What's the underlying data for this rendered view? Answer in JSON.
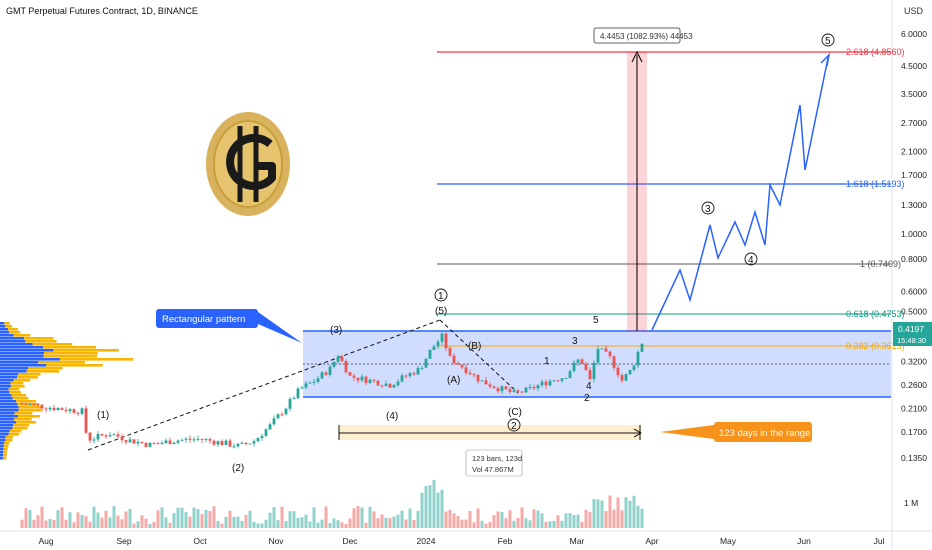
{
  "chart_data": {
    "type": "candlestick",
    "title": "GMT Perpetual Futures Contract, 1D, BINANCE",
    "currency": "USD",
    "y_scale": "log",
    "y_ticks": [
      "6.0000",
      "4.5000",
      "3.5000",
      "2.7000",
      "2.1000",
      "1.7000",
      "1.3000",
      "1.0000",
      "0.8000",
      "0.6000",
      "0.5000",
      "0.4197",
      "0.3200",
      "0.2600",
      "0.2100",
      "0.1700",
      "0.1350"
    ],
    "x_ticks": [
      "Aug",
      "Sep",
      "Oct",
      "Nov",
      "Dec",
      "2024",
      "Feb",
      "Mar",
      "Apr",
      "May",
      "Jun",
      "Jul"
    ],
    "current_price": {
      "value": "0.4197",
      "countdown": "15:48:30",
      "color": "#26a69a"
    },
    "fib_levels": [
      {
        "label": "2.618 (4.8560)",
        "color": "#f23645"
      },
      {
        "label": "1.618 (1.5193)",
        "color": "#2962ff"
      },
      {
        "label": "1 (0.7409)",
        "color": "#555555"
      },
      {
        "label": "0.618 (0.4753)",
        "color": "#089981"
      },
      {
        "label": "0.382 (0.3613)",
        "color": "#f7a600"
      }
    ],
    "measure_label": "4.4453 (1082.93%) 44453",
    "range_info": {
      "bars": "123 bars, 123d",
      "volume": "Vol 47.867M"
    },
    "callouts": {
      "pattern": "Rectangular pattern",
      "range": "123 days in the range"
    },
    "wave_labels": {
      "w1": "(1)",
      "w2": "(2)",
      "w3": "(3)",
      "w4": "(4)",
      "w5": "(5)",
      "circ1": "1",
      "circ2": "2",
      "circ3": "3",
      "circ4": "4",
      "circ5": "5",
      "A": "(A)",
      "B": "(B)",
      "C": "(C)",
      "s1": "1",
      "s2": "2",
      "s3": "3",
      "s4": "4",
      "s5": "5"
    },
    "volume_tick": "1 M",
    "colors": {
      "up": "#26a69a",
      "down": "#ef5350",
      "rectangle": "#2962ff",
      "callout": "#2962ff",
      "range_callout": "#f7931a"
    }
  }
}
